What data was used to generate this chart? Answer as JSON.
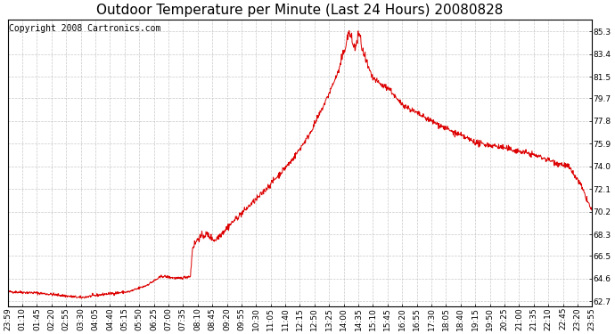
{
  "title": "Outdoor Temperature per Minute (Last 24 Hours) 20080828",
  "copyright": "Copyright 2008 Cartronics.com",
  "line_color": "#dd0000",
  "background_color": "#ffffff",
  "plot_bg_color": "#ffffff",
  "grid_color": "#bbbbbb",
  "yticks": [
    62.7,
    64.6,
    66.5,
    68.3,
    70.2,
    72.1,
    74.0,
    75.9,
    77.8,
    79.7,
    81.5,
    83.4,
    85.3
  ],
  "ylim": [
    62.3,
    86.3
  ],
  "xtick_labels": [
    "23:59",
    "01:10",
    "01:45",
    "02:20",
    "02:55",
    "03:30",
    "04:05",
    "04:40",
    "05:15",
    "05:50",
    "06:25",
    "07:00",
    "07:35",
    "08:10",
    "08:45",
    "09:20",
    "09:55",
    "10:30",
    "11:05",
    "11:40",
    "12:15",
    "12:50",
    "13:25",
    "14:00",
    "14:35",
    "15:10",
    "15:45",
    "16:20",
    "16:55",
    "17:30",
    "18:05",
    "18:40",
    "19:15",
    "19:50",
    "20:25",
    "21:00",
    "21:35",
    "22:10",
    "22:45",
    "23:20",
    "23:55"
  ],
  "title_fontsize": 11,
  "copyright_fontsize": 7,
  "tick_fontsize": 6.5
}
